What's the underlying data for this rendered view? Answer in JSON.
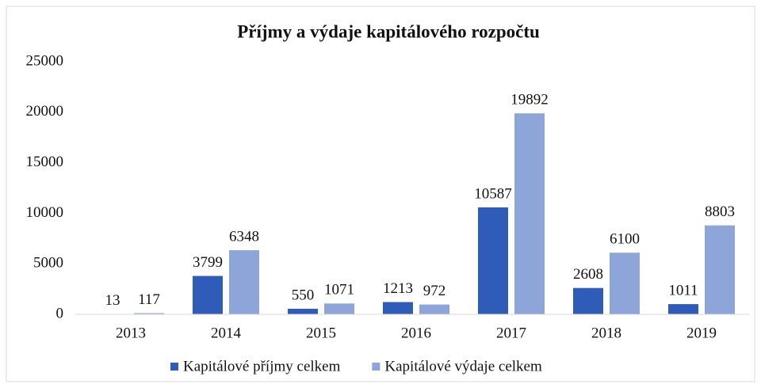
{
  "chart_data": {
    "type": "bar",
    "title": "Příjmy a výdaje kapitálového rozpočtu",
    "categories": [
      "2013",
      "2014",
      "2015",
      "2016",
      "2017",
      "2018",
      "2019"
    ],
    "series": [
      {
        "name": "Kapitálové příjmy celkem",
        "color": "#2e5cb8",
        "values": [
          13,
          3799,
          550,
          1213,
          10587,
          2608,
          1011
        ]
      },
      {
        "name": "Kapitálové výdaje celkem",
        "color": "#8ea5d9",
        "values": [
          117,
          6348,
          1071,
          972,
          19892,
          6100,
          8803
        ]
      }
    ],
    "ylim": [
      0,
      25000
    ],
    "yticks": [
      0,
      5000,
      10000,
      15000,
      20000,
      25000
    ],
    "grid": false,
    "legend": "bottom"
  }
}
